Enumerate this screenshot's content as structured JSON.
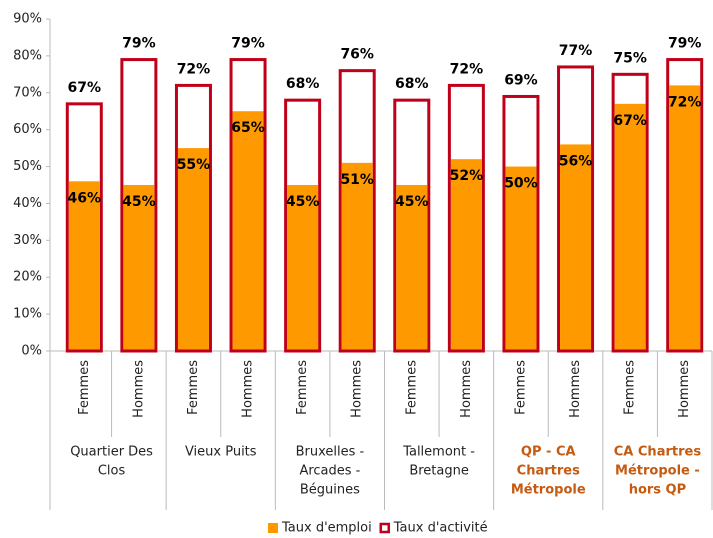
{
  "chart_data": {
    "type": "bar",
    "categories": [
      "Femmes",
      "Hommes",
      "Femmes",
      "Hommes",
      "Femmes",
      "Hommes",
      "Femmes",
      "Hommes",
      "Femmes",
      "Hommes",
      "Femmes",
      "Hommes"
    ],
    "groups": [
      {
        "lines": [
          "Quartier Des",
          "Clos"
        ],
        "color": "#222222"
      },
      {
        "lines": [
          "Vieux Puits"
        ],
        "color": "#222222"
      },
      {
        "lines": [
          "Bruxelles -",
          "Arcades -",
          "Béguines"
        ],
        "color": "#222222"
      },
      {
        "lines": [
          "Tallemont -",
          "Bretagne"
        ],
        "color": "#222222"
      },
      {
        "lines": [
          "QP - CA",
          "Chartres",
          "Métropole"
        ],
        "color": "#c55a11"
      },
      {
        "lines": [
          "CA Chartres",
          "Métropole -",
          "hors QP"
        ],
        "color": "#c55a11"
      }
    ],
    "series": [
      {
        "name": "Taux d'emploi",
        "color": "#ff9900",
        "values": [
          46,
          45,
          55,
          65,
          45,
          51,
          45,
          52,
          50,
          56,
          67,
          72
        ],
        "value_labels": [
          "46%",
          "45%",
          "55%",
          "65%",
          "45%",
          "51%",
          "45%",
          "52%",
          "50%",
          "56%",
          "67%",
          "72%"
        ]
      },
      {
        "name": "Taux d'activité",
        "color": "#c00018",
        "values": [
          67,
          79,
          72,
          79,
          68,
          76,
          68,
          72,
          69,
          77,
          75,
          79
        ],
        "value_labels": [
          "67%",
          "79%",
          "72%",
          "79%",
          "68%",
          "76%",
          "68%",
          "72%",
          "69%",
          "77%",
          "75%",
          "79%"
        ]
      }
    ],
    "ylim": [
      0,
      90
    ],
    "yticks": [
      {
        "value": 0,
        "label": "0%"
      },
      {
        "value": 10,
        "label": "10%"
      },
      {
        "value": 20,
        "label": "20%"
      },
      {
        "value": 30,
        "label": "30%"
      },
      {
        "value": 40,
        "label": "40%"
      },
      {
        "value": 50,
        "label": "50%"
      },
      {
        "value": 60,
        "label": "60%"
      },
      {
        "value": 70,
        "label": "70%"
      },
      {
        "value": 80,
        "label": "80%"
      },
      {
        "value": 90,
        "label": "90%"
      }
    ],
    "legend": "bottom"
  }
}
